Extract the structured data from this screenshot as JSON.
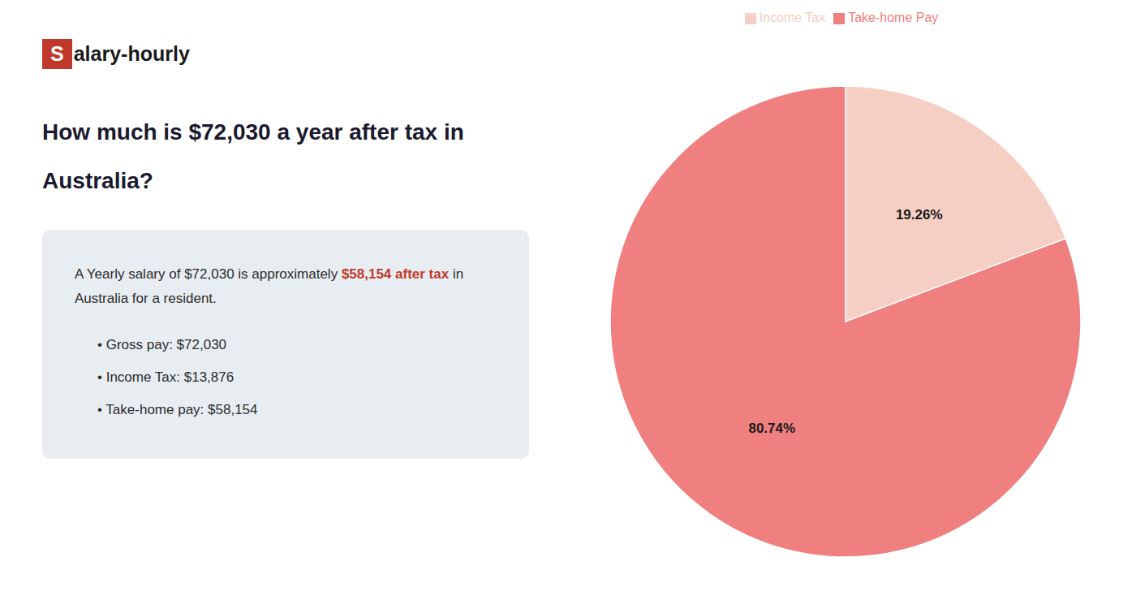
{
  "chart_data": {
    "type": "pie",
    "title": [
      "How much is $72,030 a year after tax in",
      "Australia?"
    ],
    "annotations": {
      "logo": [
        {
          "text": "S",
          "color": "#c0392b"
        },
        {
          "text": "alary-hourly"
        }
      ],
      "box": [
        [
          {
            "text": "A Yearly salary of $72,030 is approximately "
          },
          {
            "text": "$58,154 after tax",
            "color": "#c0392b"
          },
          {
            "text": " in"
          }
        ],
        [
          {
            "text": "Australia for a resident."
          }
        ]
      ],
      "bullets": [
        "• Gross pay: $72,030",
        "• Income Tax: $13,876",
        "• Take-home pay: $58,154"
      ]
    },
    "categories": [
      "Income Tax",
      "Take-home Pay"
    ],
    "values": [
      19.26,
      80.74
    ],
    "value_labels": [
      "19.26%",
      "80.74%"
    ],
    "colors": [
      "#f5cfc4",
      "#f08080"
    ],
    "data_labels": true,
    "legend": "top"
  }
}
